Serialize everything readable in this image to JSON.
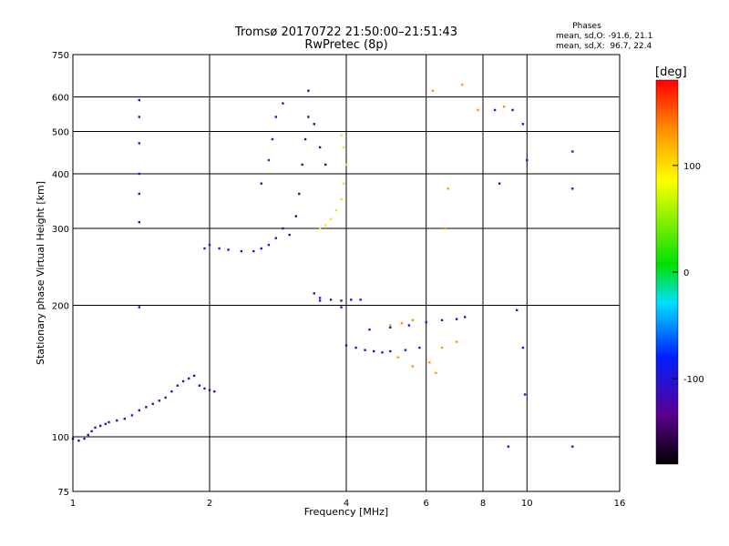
{
  "chart_data": {
    "type": "scatter",
    "title": "Tromsø 20170722 21:50:00–21:51:43",
    "subtitle": "RwPretec (8p)",
    "xlabel": "Frequency [MHz]",
    "ylabel": "Stationary phase Virtual Height [km]",
    "x_scale": "log",
    "y_scale": "log",
    "xlim": [
      1,
      16
    ],
    "ylim": [
      75,
      750
    ],
    "x_ticks": [
      1,
      2,
      4,
      6,
      8,
      10,
      16
    ],
    "y_ticks": [
      75,
      100,
      200,
      300,
      400,
      500,
      600,
      750
    ],
    "grid": true,
    "stats": {
      "title": "Phases",
      "line1": "mean, sd,O: -91.6, 21.1",
      "line2": "mean, sd,X:  96.7, 22.4"
    },
    "colorbar": {
      "label": "[deg]",
      "range": [
        -180,
        180
      ],
      "ticks": [
        100,
        0,
        -100
      ],
      "colormap": "rainbow: black-purple-blue-cyan-green-yellow-red"
    },
    "series": [
      {
        "trace": "low F-region echo 1.0-2.1 MHz",
        "phase_deg": -110,
        "points": [
          [
            1.0,
            99
          ],
          [
            1.03,
            98
          ],
          [
            1.06,
            99
          ],
          [
            1.08,
            101
          ],
          [
            1.1,
            103
          ],
          [
            1.12,
            105
          ],
          [
            1.15,
            106
          ],
          [
            1.18,
            107
          ],
          [
            1.2,
            108
          ],
          [
            1.25,
            109
          ],
          [
            1.3,
            110
          ],
          [
            1.35,
            112
          ],
          [
            1.4,
            115
          ],
          [
            1.45,
            117
          ],
          [
            1.5,
            119
          ],
          [
            1.55,
            121
          ],
          [
            1.6,
            123
          ],
          [
            1.65,
            127
          ],
          [
            1.7,
            131
          ],
          [
            1.75,
            134
          ],
          [
            1.8,
            136
          ],
          [
            1.85,
            138
          ],
          [
            1.9,
            131
          ],
          [
            1.95,
            129
          ],
          [
            2.0,
            128
          ],
          [
            2.05,
            127
          ]
        ]
      },
      {
        "trace": "vertical streak at 1.4 MHz",
        "phase_deg": -115,
        "points": [
          [
            1.4,
            590
          ],
          [
            1.4,
            540
          ],
          [
            1.4,
            470
          ],
          [
            1.4,
            400
          ],
          [
            1.4,
            360
          ],
          [
            1.4,
            310
          ],
          [
            1.4,
            198
          ]
        ]
      },
      {
        "trace": "F-trace O-mode",
        "phase_deg": -95,
        "points": [
          [
            1.95,
            270
          ],
          [
            2.0,
            275
          ],
          [
            2.1,
            270
          ],
          [
            2.2,
            268
          ],
          [
            2.35,
            266
          ],
          [
            2.5,
            266
          ],
          [
            2.6,
            270
          ],
          [
            2.7,
            275
          ],
          [
            2.8,
            285
          ],
          [
            2.9,
            300
          ],
          [
            2.6,
            380
          ],
          [
            2.7,
            430
          ],
          [
            2.75,
            480
          ],
          [
            2.8,
            540
          ],
          [
            2.9,
            580
          ]
        ]
      },
      {
        "trace": "F-trace cusp",
        "phase_deg": -140,
        "points": [
          [
            3.0,
            290
          ],
          [
            3.1,
            320
          ],
          [
            3.15,
            360
          ],
          [
            3.2,
            420
          ],
          [
            3.25,
            480
          ],
          [
            3.3,
            540
          ],
          [
            3.3,
            620
          ],
          [
            3.4,
            520
          ],
          [
            3.5,
            460
          ],
          [
            3.6,
            420
          ]
        ]
      },
      {
        "trace": "F-trace X-mode",
        "phase_deg": 100,
        "points": [
          [
            3.5,
            300
          ],
          [
            3.6,
            305
          ],
          [
            3.7,
            315
          ],
          [
            3.8,
            330
          ],
          [
            3.9,
            350
          ],
          [
            3.95,
            380
          ],
          [
            4.0,
            420
          ],
          [
            3.95,
            460
          ],
          [
            3.9,
            490
          ]
        ]
      },
      {
        "trace": "echoes 3.3-4.4 MHz near 200 km",
        "phase_deg": -105,
        "points": [
          [
            3.4,
            213
          ],
          [
            3.5,
            208
          ],
          [
            3.7,
            206
          ],
          [
            3.9,
            205
          ],
          [
            4.1,
            206
          ],
          [
            4.3,
            206
          ],
          [
            3.5,
            205
          ],
          [
            3.9,
            198
          ]
        ]
      },
      {
        "trace": "sporadic echoes 4-7.5 MHz",
        "phase_deg": -90,
        "points": [
          [
            4.0,
            162
          ],
          [
            4.2,
            160
          ],
          [
            4.4,
            158
          ],
          [
            4.6,
            157
          ],
          [
            4.8,
            156
          ],
          [
            5.0,
            157
          ],
          [
            5.4,
            158
          ],
          [
            5.8,
            160
          ],
          [
            4.5,
            176
          ],
          [
            5.0,
            178
          ],
          [
            5.5,
            180
          ],
          [
            6.0,
            183
          ],
          [
            6.5,
            185
          ],
          [
            7.0,
            186
          ],
          [
            7.3,
            188
          ]
        ]
      },
      {
        "trace": "scattered echoes",
        "phase_deg": 130,
        "points": [
          [
            5.0,
            180
          ],
          [
            5.3,
            182
          ],
          [
            5.6,
            185
          ],
          [
            5.2,
            152
          ],
          [
            5.6,
            145
          ],
          [
            6.1,
            148
          ],
          [
            6.5,
            160
          ],
          [
            7.0,
            165
          ],
          [
            6.3,
            140
          ],
          [
            6.2,
            620
          ],
          [
            6.6,
            300
          ],
          [
            6.7,
            370
          ],
          [
            7.2,
            640
          ],
          [
            7.8,
            560
          ],
          [
            8.9,
            570
          ]
        ]
      },
      {
        "trace": "isolated echoes above 8 MHz",
        "phase_deg": -100,
        "points": [
          [
            8.5,
            560
          ],
          [
            9.3,
            560
          ],
          [
            9.8,
            520
          ],
          [
            10.0,
            430
          ],
          [
            8.7,
            380
          ],
          [
            12.6,
            450
          ],
          [
            12.6,
            370
          ],
          [
            9.5,
            195
          ],
          [
            9.8,
            160
          ],
          [
            9.9,
            125
          ],
          [
            9.1,
            95
          ],
          [
            12.6,
            95
          ]
        ]
      }
    ]
  }
}
